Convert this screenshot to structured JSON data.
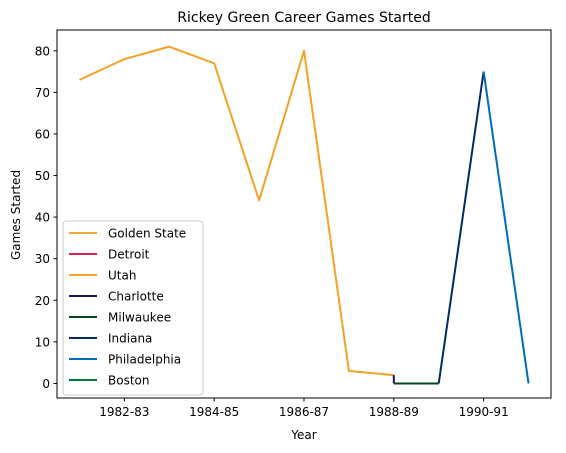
{
  "chart_data": {
    "type": "line",
    "title": "Rickey Green Career Games Started",
    "xlabel": "Year",
    "ylabel": "Games Started",
    "x_index": [
      0,
      1,
      2,
      3,
      4,
      5,
      6,
      7,
      8,
      9,
      10
    ],
    "x_tick_positions": [
      1,
      3,
      5,
      7,
      9
    ],
    "x_tick_labels": [
      "1982-83",
      "1984-85",
      "1986-87",
      "1988-89",
      "1990-91"
    ],
    "xlim": [
      -0.5,
      10.5
    ],
    "ylim": [
      -3.5,
      85
    ],
    "y_ticks": [
      0,
      10,
      20,
      30,
      40,
      50,
      60,
      70,
      80
    ],
    "grid": false,
    "legend_position": "lower-left",
    "series": [
      {
        "name": "Golden State",
        "color": "#F7A833",
        "points": []
      },
      {
        "name": "Detroit",
        "color": "#D6204E",
        "points": []
      },
      {
        "name": "Utah",
        "color": "#F4A127",
        "points": [
          [
            0,
            73
          ],
          [
            1,
            78
          ],
          [
            2,
            81
          ],
          [
            3,
            77
          ],
          [
            4,
            44
          ],
          [
            5,
            80
          ],
          [
            6,
            3
          ],
          [
            7,
            2
          ]
        ]
      },
      {
        "name": "Charlotte",
        "color": "#1D1160",
        "points": [
          [
            7,
            2
          ],
          [
            7,
            0
          ]
        ]
      },
      {
        "name": "Milwaukee",
        "color": "#00471B",
        "points": [
          [
            7,
            0
          ],
          [
            8,
            0
          ]
        ]
      },
      {
        "name": "Indiana",
        "color": "#002D62",
        "points": [
          [
            8,
            0
          ],
          [
            9,
            75
          ]
        ]
      },
      {
        "name": "Philadelphia",
        "color": "#006BB6",
        "points": [
          [
            9,
            75
          ],
          [
            10,
            0
          ]
        ]
      },
      {
        "name": "Boston",
        "color": "#007A33",
        "points": []
      }
    ]
  }
}
